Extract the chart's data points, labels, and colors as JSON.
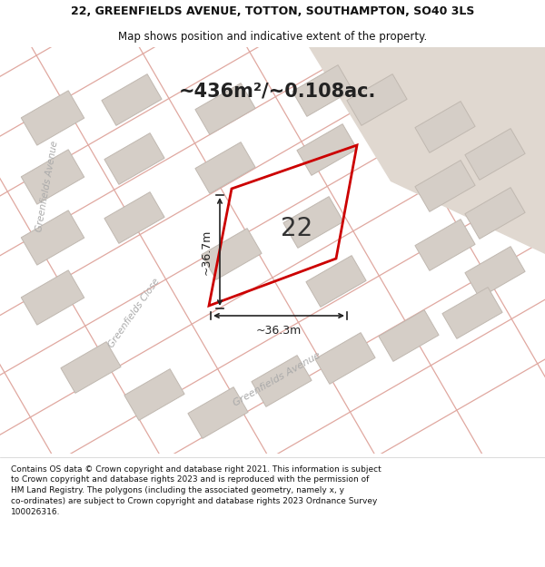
{
  "title_line1": "22, GREENFIELDS AVENUE, TOTTON, SOUTHAMPTON, SO40 3LS",
  "title_line2": "Map shows position and indicative extent of the property.",
  "area_text": "~436m²/~0.108ac.",
  "plot_number": "22",
  "dim_width": "~36.3m",
  "dim_height": "~36.7m",
  "footer": "Contains OS data © Crown copyright and database right 2021. This information is subject to Crown copyright and database rights 2023 and is reproduced with the permission of HM Land Registry. The polygons (including the associated geometry, namely x, y co-ordinates) are subject to Crown copyright and database rights 2023 Ordnance Survey 100026316.",
  "map_bg": "#f5f0eb",
  "building_fill": "#d5cec7",
  "building_edge": "#c0b8b0",
  "road_line_color": "#e0a8a0",
  "plot_edge": "#cc0000",
  "dim_color": "#222222",
  "street_color": "#aaaaaa",
  "upper_right_fill": "#e0d8d0",
  "title_fontsize": 9.0,
  "subtitle_fontsize": 8.5,
  "area_fontsize": 15,
  "footer_fontsize": 6.5,
  "plot_label_fontsize": 20,
  "dim_label_fontsize": 9
}
